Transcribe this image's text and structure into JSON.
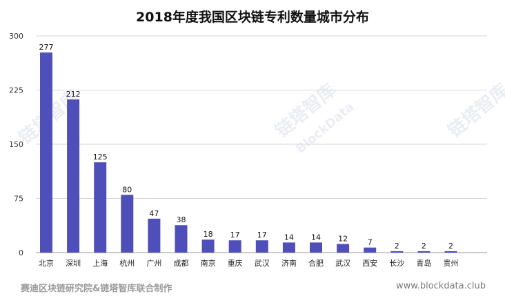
{
  "chart_data": {
    "type": "bar",
    "title": "2018年度我国区块链专利数量城市分布",
    "categories": [
      "北京",
      "深圳",
      "上海",
      "杭州",
      "广州",
      "成都",
      "南京",
      "重庆",
      "武汉",
      "济南",
      "合肥",
      "武汉",
      "西安",
      "长沙",
      "青岛",
      "贵州"
    ],
    "values": [
      277,
      212,
      125,
      80,
      47,
      38,
      18,
      17,
      17,
      14,
      14,
      12,
      7,
      2,
      2,
      2
    ],
    "ylim": [
      0,
      300
    ],
    "yticks": [
      0,
      75,
      150,
      225,
      300
    ],
    "grid": true,
    "bar_color": "#4f4fba",
    "grid_color": "#d6d6d6"
  },
  "footer": {
    "source": "赛迪区块链研究院&链塔智库联合制作",
    "url": "www.blockdata.club"
  },
  "watermark": {
    "brand_cn": "链塔智库",
    "brand_en": "BlockData"
  }
}
